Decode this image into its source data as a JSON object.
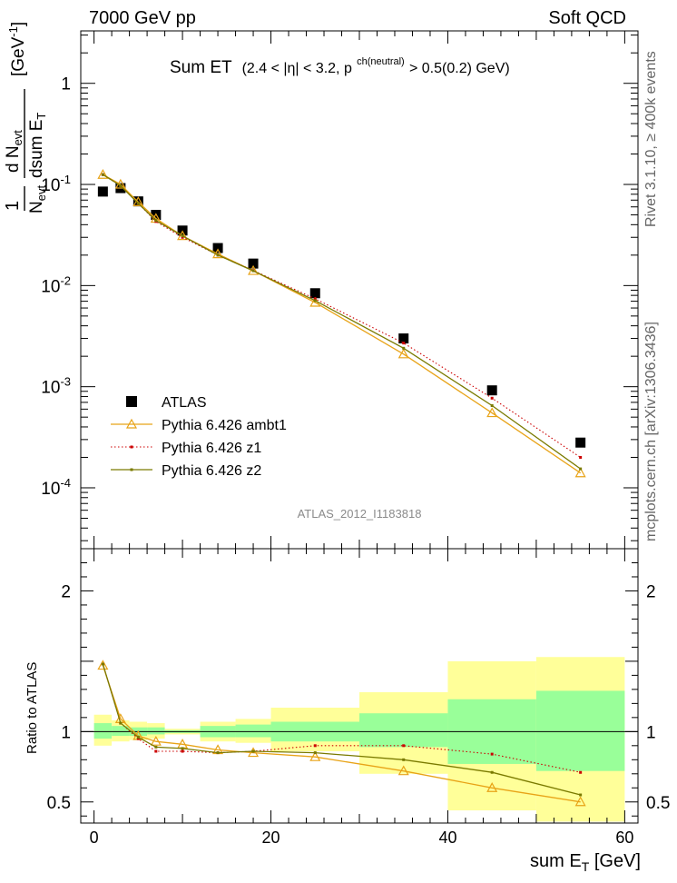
{
  "header": {
    "left": "7000 GeV pp",
    "right": "Soft QCD"
  },
  "side_labels": {
    "rivet": "Rivet 3.1.10, ≥ 400k events",
    "mcplots": "mcplots.cern.ch [arXiv:1306.3436]"
  },
  "colors": {
    "data": "#000000",
    "ambt1": "#e8a317",
    "z1": "#cc0000",
    "z2": "#7a7a00",
    "band_inner": "#99ff99",
    "band_outer": "#ffff99"
  },
  "chart_data": [
    {
      "type": "scatter",
      "yscale": "log",
      "title": "Sum ET (2.4 < |η| < 3.2, p^ch(neutral) > 0.5(0.2) GeV)",
      "title_main": "Sum ET",
      "title_cut_a": "(2.4 < |η| < 3.2, p",
      "title_sup": "ch(neutral)",
      "title_cut_b": " > 0.5(0.2) GeV)",
      "ylabel": "1/N_evt dN_evt/dsum E_T [GeV^-1]",
      "xlim": [
        -1.5,
        61.5
      ],
      "ylim": [
        2.5e-05,
        3.3
      ],
      "y_ticks": [
        {
          "value": 1,
          "label": "1"
        },
        {
          "value": 0.1,
          "label": "10^-1"
        },
        {
          "value": 0.01,
          "label": "10^-2"
        },
        {
          "value": 0.001,
          "label": "10^-3"
        },
        {
          "value": 0.0001,
          "label": "10^-4"
        }
      ],
      "watermark": "ATLAS_2012_I1183818",
      "legend_position": "bottom-left",
      "x": [
        1,
        3,
        5,
        7,
        10,
        14,
        18,
        25,
        35,
        45,
        55
      ],
      "series": [
        {
          "name": "ATLAS",
          "key": "data",
          "values": [
            0.085,
            0.092,
            0.068,
            0.05,
            0.035,
            0.0235,
            0.0165,
            0.0084,
            0.003,
            0.00092,
            0.00028
          ]
        },
        {
          "name": "Pythia 6.426 ambt1",
          "key": "ambt1",
          "values": [
            0.125,
            0.1,
            0.067,
            0.046,
            0.031,
            0.0205,
            0.014,
            0.0068,
            0.0021,
            0.00055,
            0.00014
          ]
        },
        {
          "name": "Pythia 6.426 z1",
          "key": "z1",
          "values": [
            0.125,
            0.097,
            0.065,
            0.043,
            0.03,
            0.02,
            0.0141,
            0.0074,
            0.0027,
            0.00077,
            0.0002
          ]
        },
        {
          "name": "Pythia 6.426 z2",
          "key": "z2",
          "values": [
            0.125,
            0.097,
            0.065,
            0.044,
            0.031,
            0.02,
            0.014,
            0.0071,
            0.0024,
            0.00065,
            0.000154
          ]
        }
      ]
    },
    {
      "type": "scatter",
      "ylabel": "Ratio to ATLAS",
      "xlabel": "sum E_T [GeV]",
      "xlabel_main": "sum E",
      "xlabel_sub": "T",
      "xlabel_unit": " [GeV]",
      "xlim": [
        -1.5,
        61.5
      ],
      "ylim": [
        0.35,
        2.3
      ],
      "x_ticks": [
        0,
        20,
        40,
        60
      ],
      "y_ticks": [
        0.5,
        1,
        2
      ],
      "bins": [
        {
          "lo": 0,
          "hi": 2,
          "inner": [
            0.95,
            1.06
          ],
          "outer": [
            0.9,
            1.12
          ]
        },
        {
          "lo": 2,
          "hi": 4,
          "inner": [
            0.97,
            1.04
          ],
          "outer": [
            0.93,
            1.08
          ]
        },
        {
          "lo": 4,
          "hi": 6,
          "inner": [
            0.97,
            1.03
          ],
          "outer": [
            0.94,
            1.07
          ]
        },
        {
          "lo": 6,
          "hi": 8,
          "inner": [
            0.98,
            1.03
          ],
          "outer": [
            0.95,
            1.06
          ]
        },
        {
          "lo": 8,
          "hi": 12,
          "inner": [
            0.99,
            1.01
          ],
          "outer": [
            0.98,
            1.02
          ]
        },
        {
          "lo": 12,
          "hi": 16,
          "inner": [
            0.96,
            1.04
          ],
          "outer": [
            0.93,
            1.07
          ]
        },
        {
          "lo": 16,
          "hi": 20,
          "inner": [
            0.96,
            1.05
          ],
          "outer": [
            0.92,
            1.09
          ]
        },
        {
          "lo": 20,
          "hi": 30,
          "inner": [
            0.93,
            1.07
          ],
          "outer": [
            0.86,
            1.17
          ]
        },
        {
          "lo": 30,
          "hi": 40,
          "inner": [
            0.89,
            1.13
          ],
          "outer": [
            0.7,
            1.28
          ]
        },
        {
          "lo": 40,
          "hi": 50,
          "inner": [
            0.77,
            1.23
          ],
          "outer": [
            0.44,
            1.5
          ]
        },
        {
          "lo": 50,
          "hi": 60,
          "inner": [
            0.72,
            1.29
          ],
          "outer": [
            0.36,
            1.53
          ]
        }
      ],
      "x": [
        1,
        3,
        5,
        7,
        10,
        14,
        18,
        25,
        35,
        45,
        55
      ],
      "series": [
        {
          "name": "Pythia 6.426 ambt1",
          "key": "ambt1",
          "values": [
            1.47,
            1.09,
            0.97,
            0.93,
            0.91,
            0.87,
            0.85,
            0.82,
            0.72,
            0.6,
            0.5
          ]
        },
        {
          "name": "Pythia 6.426 z1",
          "key": "z1",
          "values": [
            1.48,
            1.06,
            0.95,
            0.86,
            0.86,
            0.85,
            0.86,
            0.9,
            0.9,
            0.84,
            0.71
          ]
        },
        {
          "name": "Pythia 6.426 z2",
          "key": "z2",
          "values": [
            1.48,
            1.06,
            0.96,
            0.89,
            0.88,
            0.85,
            0.86,
            0.85,
            0.8,
            0.71,
            0.55
          ]
        }
      ]
    }
  ]
}
